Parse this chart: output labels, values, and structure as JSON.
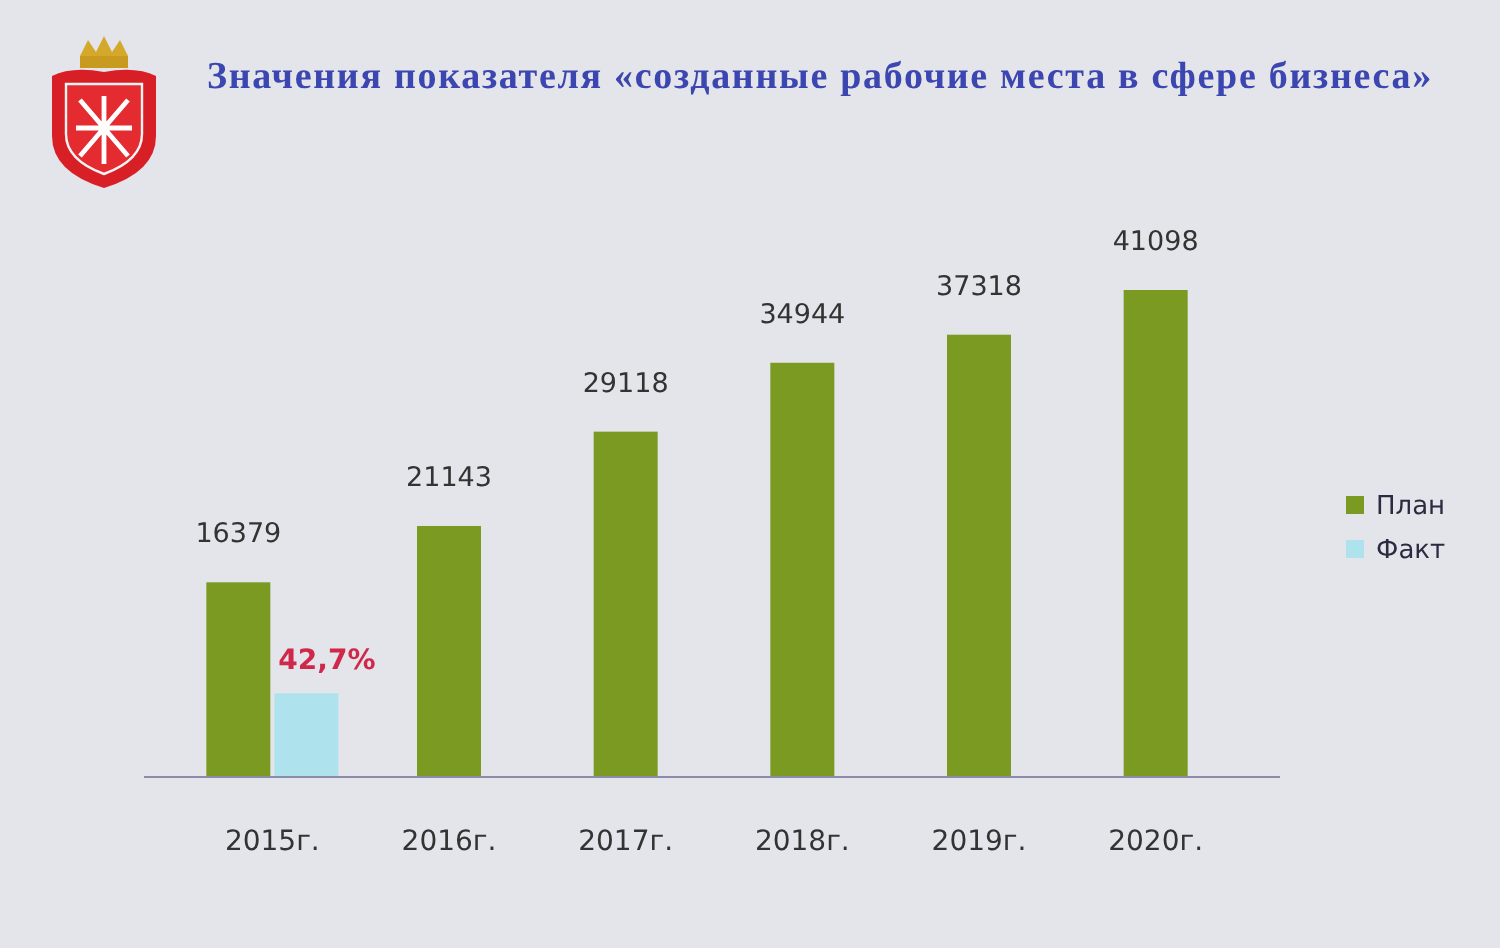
{
  "chart_data": {
    "type": "bar",
    "title": "Значения показателя «созданные рабочие места в сфере бизнеса»",
    "categories": [
      "2015г.",
      "2016г.",
      "2017г.",
      "2018г.",
      "2019г.",
      "2020г."
    ],
    "series": [
      {
        "name": "План",
        "color": "#7a9a22",
        "values": [
          16379,
          21143,
          29118,
          34944,
          37318,
          41098
        ],
        "value_labels": [
          "16379",
          "21143",
          "29118",
          "34944",
          "37318",
          "41098"
        ]
      },
      {
        "name": "Факт",
        "color": "#aee3ee",
        "values": [
          6994,
          null,
          null,
          null,
          null,
          null
        ]
      }
    ],
    "annotations": [
      {
        "text": "42,7%",
        "x": "2015г.",
        "y": 6994
      }
    ],
    "legend": "right"
  }
}
